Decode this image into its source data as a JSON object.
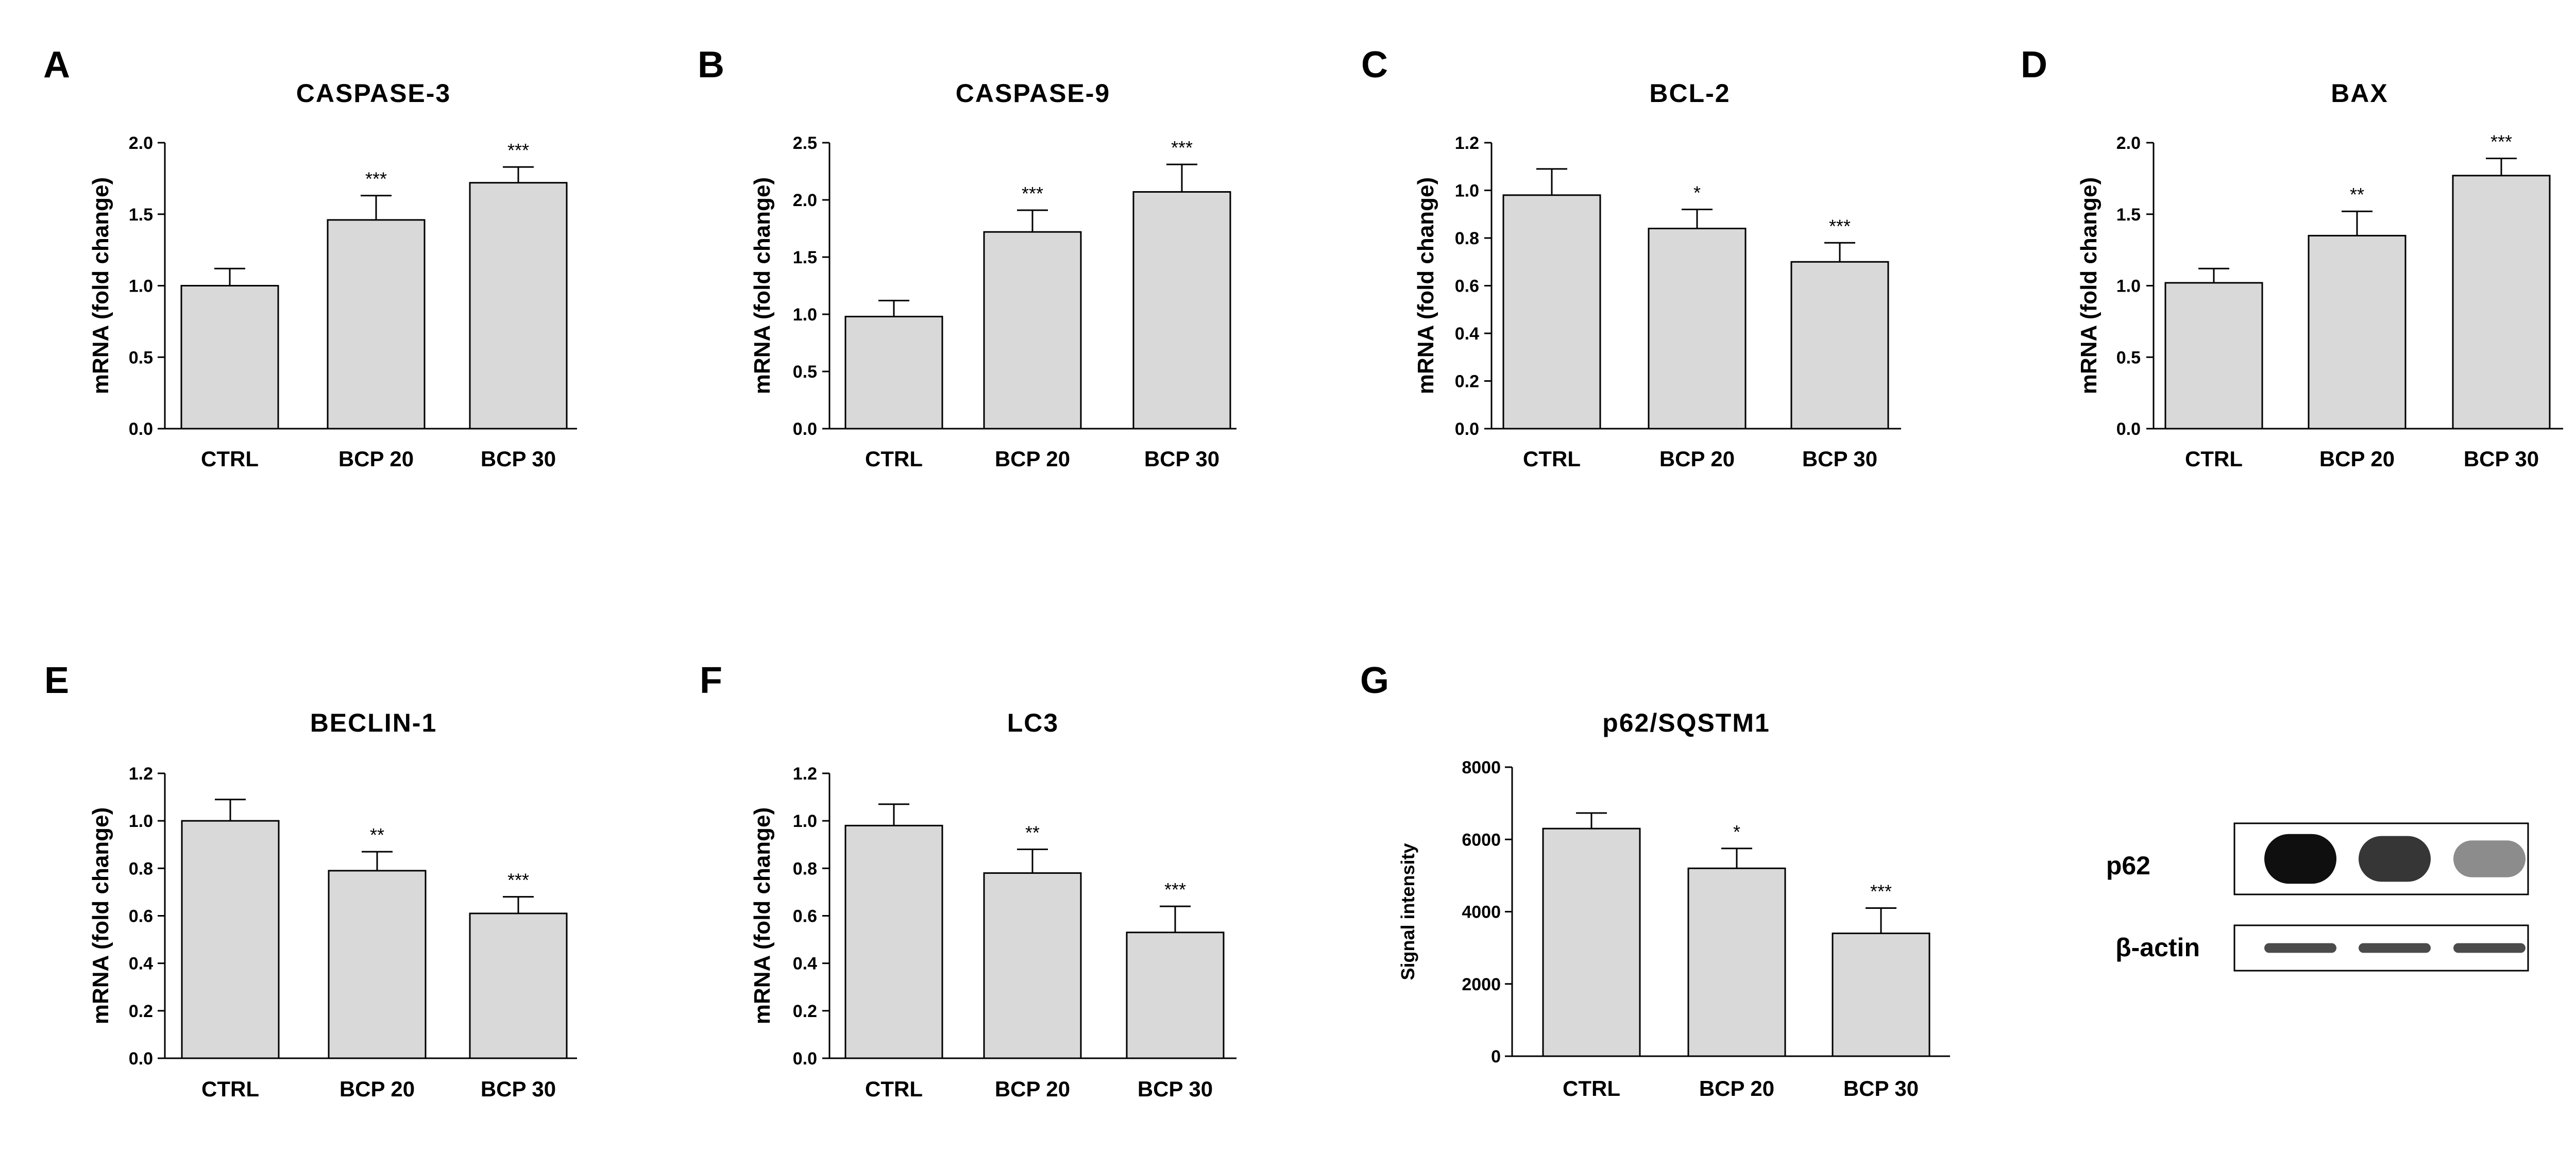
{
  "colors": {
    "bar_fill": "#d9d9d9",
    "stroke": "#000000",
    "background": "#ffffff"
  },
  "chart_data": [
    {
      "id": "A",
      "type": "bar",
      "title": "CASPASE-3",
      "xlabel": "",
      "ylabel": "mRNA (fold change)",
      "categories": [
        "CTRL",
        "BCP 20",
        "BCP 30"
      ],
      "values": [
        1.0,
        1.46,
        1.72
      ],
      "errors": [
        0.12,
        0.17,
        0.11
      ],
      "significance": [
        "",
        "***",
        "***"
      ],
      "ylim": [
        0,
        2.0
      ],
      "ticks": [
        0,
        0.5,
        1.0,
        1.5,
        2.0
      ],
      "tick_labels": [
        "0.0",
        "0.5",
        "1.0",
        "1.5",
        "2.0"
      ]
    },
    {
      "id": "B",
      "type": "bar",
      "title": "CASPASE-9",
      "xlabel": "",
      "ylabel": "mRNA (fold change)",
      "categories": [
        "CTRL",
        "BCP 20",
        "BCP 30"
      ],
      "values": [
        0.98,
        1.72,
        2.07
      ],
      "errors": [
        0.14,
        0.19,
        0.24
      ],
      "significance": [
        "",
        "***",
        "***"
      ],
      "ylim": [
        0,
        2.5
      ],
      "ticks": [
        0,
        0.5,
        1.0,
        1.5,
        2.0,
        2.5
      ],
      "tick_labels": [
        "0.0",
        "0.5",
        "1.0",
        "1.5",
        "2.0",
        "2.5"
      ]
    },
    {
      "id": "C",
      "type": "bar",
      "title": "BCL-2",
      "xlabel": "",
      "ylabel": "mRNA (fold change)",
      "categories": [
        "CTRL",
        "BCP 20",
        "BCP 30"
      ],
      "values": [
        0.98,
        0.84,
        0.7
      ],
      "errors": [
        0.11,
        0.08,
        0.08
      ],
      "significance": [
        "",
        "*",
        "***"
      ],
      "ylim": [
        0,
        1.2
      ],
      "ticks": [
        0,
        0.2,
        0.4,
        0.6,
        0.8,
        1.0,
        1.2
      ],
      "tick_labels": [
        "0.0",
        "0.2",
        "0.4",
        "0.6",
        "0.8",
        "1.0",
        "1.2"
      ]
    },
    {
      "id": "D",
      "type": "bar",
      "title": "BAX",
      "xlabel": "",
      "ylabel": "mRNA (fold change)",
      "categories": [
        "CTRL",
        "BCP 20",
        "BCP 30"
      ],
      "values": [
        1.02,
        1.35,
        1.77
      ],
      "errors": [
        0.1,
        0.17,
        0.12
      ],
      "significance": [
        "",
        "**",
        "***"
      ],
      "ylim": [
        0,
        2.0
      ],
      "ticks": [
        0,
        0.5,
        1.0,
        1.5,
        2.0
      ],
      "tick_labels": [
        "0.0",
        "0.5",
        "1.0",
        "1.5",
        "2.0"
      ]
    },
    {
      "id": "E",
      "type": "bar",
      "title": "BECLIN-1",
      "xlabel": "",
      "ylabel": "mRNA (fold change)",
      "categories": [
        "CTRL",
        "BCP 20",
        "BCP 30"
      ],
      "values": [
        1.0,
        0.79,
        0.61
      ],
      "errors": [
        0.09,
        0.08,
        0.07
      ],
      "significance": [
        "",
        "**",
        "***"
      ],
      "ylim": [
        0,
        1.2
      ],
      "ticks": [
        0,
        0.2,
        0.4,
        0.6,
        0.8,
        1.0,
        1.2
      ],
      "tick_labels": [
        "0.0",
        "0.2",
        "0.4",
        "0.6",
        "0.8",
        "1.0",
        "1.2"
      ]
    },
    {
      "id": "F",
      "type": "bar",
      "title": "LC3",
      "xlabel": "",
      "ylabel": "mRNA (fold change)",
      "categories": [
        "CTRL",
        "BCP 20",
        "BCP 30"
      ],
      "values": [
        0.98,
        0.78,
        0.53
      ],
      "errors": [
        0.09,
        0.1,
        0.11
      ],
      "significance": [
        "",
        "**",
        "***"
      ],
      "ylim": [
        0,
        1.2
      ],
      "ticks": [
        0,
        0.2,
        0.4,
        0.6,
        0.8,
        1.0,
        1.2
      ],
      "tick_labels": [
        "0.0",
        "0.2",
        "0.4",
        "0.6",
        "0.8",
        "1.0",
        "1.2"
      ]
    },
    {
      "id": "G",
      "type": "bar",
      "title": "p62/SQSTM1",
      "xlabel": "",
      "ylabel": "Signal intensity",
      "categories": [
        "CTRL",
        "BCP 20",
        "BCP 30"
      ],
      "values": [
        6300,
        5200,
        3400
      ],
      "errors": [
        430,
        550,
        700
      ],
      "significance": [
        "",
        "*",
        "***"
      ],
      "ylim": [
        0,
        8000
      ],
      "ticks": [
        0,
        2000,
        4000,
        6000,
        8000
      ],
      "tick_labels": [
        "0",
        "2000",
        "4000",
        "6000",
        "8000"
      ]
    }
  ],
  "western_blot": {
    "rows": [
      {
        "label": "p62",
        "band_intensity": [
          1.0,
          0.82,
          0.42
        ],
        "band_thickness": 1.0
      },
      {
        "label": "β-actin",
        "band_intensity": [
          0.72,
          0.72,
          0.72
        ],
        "band_thickness": 0.35
      }
    ]
  }
}
